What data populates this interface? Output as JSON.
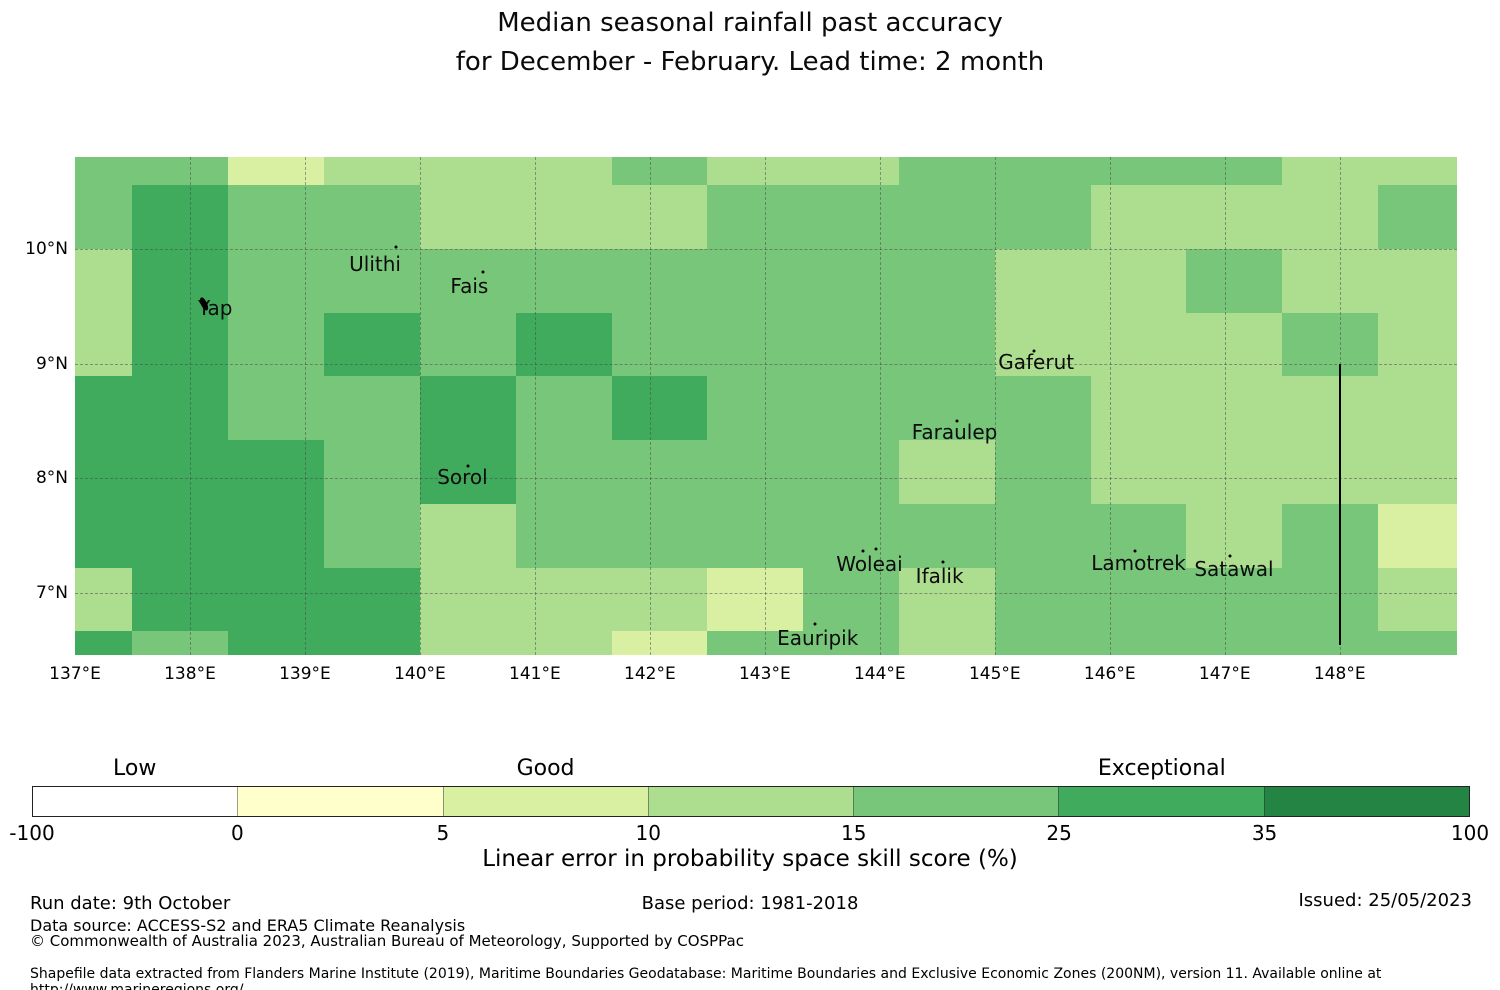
{
  "title": {
    "line1": "Median seasonal rainfall past accuracy",
    "line2": "for December - February. Lead time: 2 month"
  },
  "chart_data": {
    "type": "heatmap",
    "lon_range": [
      137.0,
      149.02
    ],
    "lat_range": [
      6.46,
      10.8
    ],
    "col_bounds": [
      137.0,
      137.5,
      138.3333,
      139.1667,
      140.0,
      140.8333,
      141.6667,
      142.5,
      143.3333,
      144.1667,
      145.0,
      145.8333,
      146.6667,
      147.5,
      148.3333,
      149.02
    ],
    "row_bounds": [
      10.8,
      10.5556,
      10.0,
      9.4444,
      8.8889,
      8.3333,
      7.7778,
      7.2222,
      6.6667,
      6.46
    ],
    "bins": [
      {
        "label": "-100-0",
        "range": [
          -100,
          0
        ],
        "color": "#ffffff"
      },
      {
        "label": "0-5",
        "range": [
          0,
          5
        ],
        "color": "#ffffcc"
      },
      {
        "label": "5-10",
        "range": [
          5,
          10
        ],
        "color": "#d9f0a3"
      },
      {
        "label": "10-15",
        "range": [
          10,
          15
        ],
        "color": "#addd8e"
      },
      {
        "label": "15-25",
        "range": [
          15,
          25
        ],
        "color": "#78c679"
      },
      {
        "label": "25-35",
        "range": [
          25,
          35
        ],
        "color": "#41ab5d"
      },
      {
        "label": "35-100",
        "range": [
          35,
          100
        ],
        "color": "#238443"
      }
    ],
    "grid_bin_indices": [
      [
        4,
        4,
        2,
        3,
        3,
        3,
        4,
        3,
        3,
        4,
        4,
        4,
        4,
        3,
        3
      ],
      [
        4,
        5,
        4,
        4,
        3,
        3,
        3,
        4,
        4,
        4,
        4,
        3,
        3,
        3,
        4
      ],
      [
        3,
        5,
        4,
        4,
        4,
        4,
        4,
        4,
        4,
        4,
        3,
        3,
        4,
        3,
        3
      ],
      [
        3,
        5,
        4,
        5,
        4,
        5,
        4,
        4,
        4,
        4,
        3,
        3,
        3,
        4,
        3
      ],
      [
        5,
        5,
        4,
        4,
        5,
        4,
        5,
        4,
        4,
        4,
        4,
        3,
        3,
        3,
        3
      ],
      [
        5,
        5,
        5,
        4,
        5,
        4,
        4,
        4,
        4,
        3,
        4,
        3,
        3,
        3,
        3
      ],
      [
        5,
        5,
        5,
        4,
        3,
        4,
        4,
        4,
        4,
        4,
        4,
        4,
        3,
        4,
        2
      ],
      [
        3,
        5,
        5,
        5,
        3,
        3,
        3,
        2,
        4,
        3,
        4,
        4,
        4,
        4,
        3
      ],
      [
        5,
        4,
        5,
        5,
        3,
        3,
        2,
        4,
        4,
        3,
        4,
        4,
        4,
        4,
        4
      ]
    ],
    "x_ticks": [
      {
        "value": 137,
        "label": "137°E"
      },
      {
        "value": 138,
        "label": "138°E"
      },
      {
        "value": 139,
        "label": "139°E"
      },
      {
        "value": 140,
        "label": "140°E"
      },
      {
        "value": 141,
        "label": "141°E"
      },
      {
        "value": 142,
        "label": "142°E"
      },
      {
        "value": 143,
        "label": "143°E"
      },
      {
        "value": 144,
        "label": "144°E"
      },
      {
        "value": 145,
        "label": "145°E"
      },
      {
        "value": 146,
        "label": "146°E"
      },
      {
        "value": 147,
        "label": "147°E"
      },
      {
        "value": 148,
        "label": "148°E"
      }
    ],
    "y_ticks": [
      {
        "value": 10,
        "label": "10°N"
      },
      {
        "value": 9,
        "label": "9°N"
      },
      {
        "value": 8,
        "label": "8°N"
      },
      {
        "value": 7,
        "label": "7°N"
      }
    ],
    "grid_on": true,
    "islands": [
      {
        "name": "Ulithi",
        "lon": 139.61,
        "lat": 9.87,
        "marker": "dot",
        "marker_lon": 139.79,
        "marker_lat": 10.02
      },
      {
        "name": "Fais",
        "lon": 140.43,
        "lat": 9.68,
        "marker": "dot",
        "marker_lon": 140.55,
        "marker_lat": 9.8
      },
      {
        "name": "Yap",
        "lon": 138.22,
        "lat": 9.48,
        "marker": "island",
        "marker_lon": 138.12,
        "marker_lat": 9.52
      },
      {
        "name": "Gaferut",
        "lon": 145.36,
        "lat": 9.01,
        "marker": "dot",
        "marker_lon": 145.34,
        "marker_lat": 9.11
      },
      {
        "name": "Faraulep",
        "lon": 144.65,
        "lat": 8.4,
        "marker": "dot",
        "marker_lon": 144.67,
        "marker_lat": 8.5
      },
      {
        "name": "Sorol",
        "lon": 140.37,
        "lat": 8.01,
        "marker": "dot",
        "marker_lon": 140.42,
        "marker_lat": 8.11
      },
      {
        "name": "Woleai",
        "lon": 143.91,
        "lat": 7.25,
        "marker": "dots",
        "marker_lon": 143.85,
        "marker_lat": 7.37,
        "marker2_lon": 143.97,
        "marker2_lat": 7.38
      },
      {
        "name": "Ifalik",
        "lon": 144.52,
        "lat": 7.15,
        "marker": "dot",
        "marker_lon": 144.55,
        "marker_lat": 7.27
      },
      {
        "name": "Lamotrek",
        "lon": 146.25,
        "lat": 7.26,
        "marker": "dot",
        "marker_lon": 146.22,
        "marker_lat": 7.37
      },
      {
        "name": "Satawal",
        "lon": 147.08,
        "lat": 7.21,
        "marker": "dot",
        "marker_lon": 147.05,
        "marker_lat": 7.32
      },
      {
        "name": "Eauripik",
        "lon": 143.46,
        "lat": 6.61,
        "marker": "dot",
        "marker_lon": 143.44,
        "marker_lat": 6.73
      }
    ],
    "eez_line": {
      "lon": 148.0,
      "lat_top": 9.0,
      "lat_bottom": 6.55,
      "color": "#000000"
    },
    "colorbar": {
      "tick_labels": [
        "-100",
        "0",
        "5",
        "10",
        "15",
        "25",
        "35",
        "100"
      ],
      "segment_colors": [
        "#ffffff",
        "#ffffcc",
        "#d9f0a3",
        "#addd8e",
        "#78c679",
        "#41ab5d",
        "#238443"
      ],
      "categories": [
        {
          "label": "Low",
          "segment_index": 1
        },
        {
          "label": "Good",
          "segment_index": 3
        },
        {
          "label": "Exceptional",
          "segment_index": 6
        }
      ],
      "axis_label": "Linear error in probability space skill score (%)"
    }
  },
  "footer": {
    "run_date": "Run date: 9th October",
    "data_source": "Data source: ACCESS-S2 and ERA5 Climate Reanalysis",
    "copyright": "© Commonwealth of Australia 2023, Australian Bureau of Meteorology, Supported by COSPPac",
    "base_period": "Base period: 1981-2018",
    "issued": "Issued: 25/05/2023",
    "shapefile": "Shapefile data extracted from Flanders Marine Institute (2019), Maritime Boundaries Geodatabase: Maritime Boundaries and Exclusive Economic Zones (200NM), version 11. Available online at http://www.marineregions.org/."
  }
}
